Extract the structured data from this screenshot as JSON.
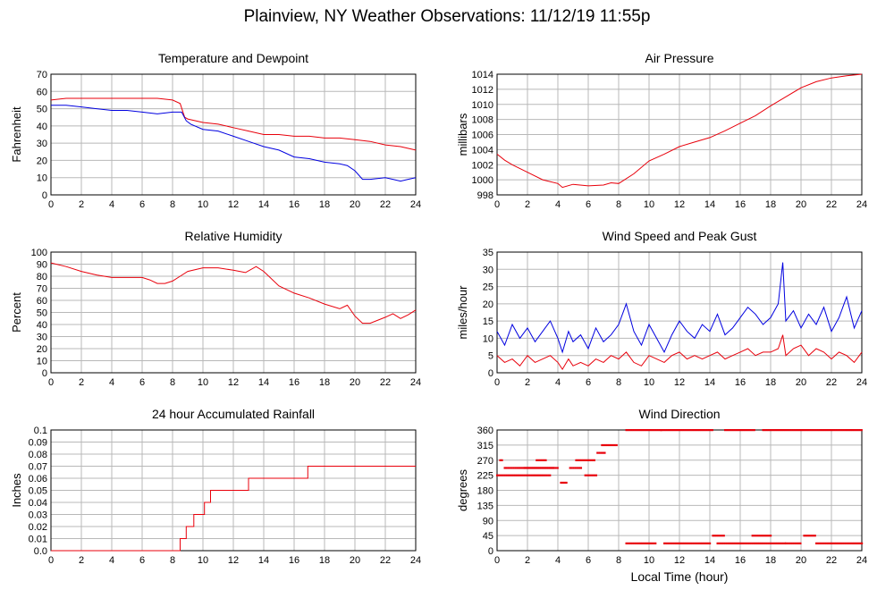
{
  "page": {
    "title": "Plainview, NY Weather Observations: 11/12/19 11:55p"
  },
  "colors": {
    "red": "#e8000b",
    "blue": "#0000e0",
    "grid": "#b8b8b8"
  },
  "chart_data": [
    {
      "id": "temp",
      "type": "line",
      "title": "Temperature and Dewpoint",
      "ylabel": "Fahrenheit",
      "xlabel": "",
      "xlim": [
        0,
        24
      ],
      "ylim": [
        0,
        70
      ],
      "xticks": [
        0,
        2,
        4,
        6,
        8,
        10,
        12,
        14,
        16,
        18,
        20,
        22,
        24
      ],
      "yticks": [
        0,
        10,
        20,
        30,
        40,
        50,
        60,
        70
      ],
      "series": [
        {
          "color": "red",
          "x": [
            0,
            1,
            2,
            3,
            4,
            5,
            6,
            7,
            8,
            8.5,
            8.8,
            9,
            10,
            11,
            12,
            13,
            14,
            15,
            16,
            17,
            18,
            19,
            20,
            21,
            22,
            23,
            24
          ],
          "y": [
            55,
            56,
            56,
            56,
            56,
            56,
            56,
            56,
            55,
            53,
            45,
            44,
            42,
            41,
            39,
            37,
            35,
            35,
            34,
            34,
            33,
            33,
            32,
            31,
            29,
            28,
            26
          ]
        },
        {
          "color": "blue",
          "x": [
            0,
            1,
            2,
            3,
            4,
            5,
            6,
            7,
            8,
            8.6,
            8.9,
            9.2,
            10,
            11,
            12,
            13,
            14,
            15,
            16,
            17,
            18,
            19,
            19.5,
            20,
            20.5,
            21,
            22,
            22.5,
            23,
            23.5,
            24
          ],
          "y": [
            52,
            52,
            51,
            50,
            49,
            49,
            48,
            47,
            48,
            48,
            43,
            41,
            38,
            37,
            34,
            31,
            28,
            26,
            22,
            21,
            19,
            18,
            17,
            14,
            9,
            9,
            10,
            9,
            8,
            9,
            10
          ]
        }
      ]
    },
    {
      "id": "pressure",
      "type": "line",
      "title": "Air Pressure",
      "ylabel": "millibars",
      "xlabel": "",
      "xlim": [
        0,
        24
      ],
      "ylim": [
        998,
        1014
      ],
      "xticks": [
        0,
        2,
        4,
        6,
        8,
        10,
        12,
        14,
        16,
        18,
        20,
        22,
        24
      ],
      "yticks": [
        998,
        1000,
        1002,
        1004,
        1006,
        1008,
        1010,
        1012,
        1014
      ],
      "series": [
        {
          "color": "red",
          "x": [
            0,
            0.5,
            1,
            2,
            3,
            4,
            4.3,
            5,
            6,
            7,
            7.5,
            8,
            9,
            10,
            11,
            12,
            13,
            14,
            15,
            16,
            17,
            18,
            19,
            20,
            21,
            22,
            23,
            24
          ],
          "y": [
            1003.4,
            1002.6,
            1002,
            1001,
            1000,
            999.5,
            999,
            999.4,
            999.2,
            999.3,
            999.6,
            999.5,
            1000.8,
            1002.5,
            1003.4,
            1004.4,
            1005,
            1005.6,
            1006.5,
            1007.5,
            1008.5,
            1009.8,
            1011,
            1012.2,
            1013,
            1013.5,
            1013.8,
            1014
          ]
        }
      ]
    },
    {
      "id": "humidity",
      "type": "line",
      "title": "Relative Humidity",
      "ylabel": "Percent",
      "xlabel": "",
      "xlim": [
        0,
        24
      ],
      "ylim": [
        0,
        100
      ],
      "xticks": [
        0,
        2,
        4,
        6,
        8,
        10,
        12,
        14,
        16,
        18,
        20,
        22,
        24
      ],
      "yticks": [
        0,
        10,
        20,
        30,
        40,
        50,
        60,
        70,
        80,
        90,
        100
      ],
      "series": [
        {
          "color": "red",
          "x": [
            0,
            1,
            2,
            3,
            4,
            5,
            6,
            6.5,
            7,
            7.5,
            8,
            8.5,
            9,
            10,
            11,
            12,
            12.8,
            13.5,
            14,
            15,
            16,
            17,
            18,
            19,
            19.5,
            20,
            20.5,
            21,
            22,
            22.5,
            23,
            23.5,
            24
          ],
          "y": [
            91,
            88,
            84,
            81,
            79,
            79,
            79,
            77,
            74,
            74,
            76,
            80,
            84,
            87,
            87,
            85,
            83,
            88,
            84,
            72,
            66,
            62,
            57,
            53,
            56,
            47,
            41,
            41,
            46,
            49,
            45,
            48,
            52
          ]
        }
      ]
    },
    {
      "id": "wind",
      "type": "line",
      "title": "Wind Speed and Peak Gust",
      "ylabel": "miles/hour",
      "xlabel": "",
      "xlim": [
        0,
        24
      ],
      "ylim": [
        0,
        35
      ],
      "xticks": [
        0,
        2,
        4,
        6,
        8,
        10,
        12,
        14,
        16,
        18,
        20,
        22,
        24
      ],
      "yticks": [
        0,
        5,
        10,
        15,
        20,
        25,
        30,
        35
      ],
      "series": [
        {
          "color": "blue",
          "x": [
            0,
            0.5,
            1,
            1.5,
            2,
            2.5,
            3,
            3.5,
            4,
            4.3,
            4.7,
            5,
            5.5,
            6,
            6.5,
            7,
            7.5,
            8,
            8.5,
            9,
            9.5,
            10,
            10.5,
            11,
            11.5,
            12,
            12.5,
            13,
            13.5,
            14,
            14.5,
            15,
            15.5,
            16,
            16.5,
            17,
            17.5,
            18,
            18.5,
            18.8,
            19,
            19.5,
            20,
            20.5,
            21,
            21.5,
            22,
            22.5,
            23,
            23.5,
            24
          ],
          "y": [
            12,
            8,
            14,
            10,
            13,
            9,
            12,
            15,
            10,
            6,
            12,
            9,
            11,
            7,
            13,
            9,
            11,
            14,
            20,
            12,
            8,
            14,
            10,
            6,
            11,
            15,
            12,
            10,
            14,
            12,
            17,
            11,
            13,
            16,
            19,
            17,
            14,
            16,
            20,
            32,
            15,
            18,
            13,
            17,
            14,
            19,
            12,
            16,
            22,
            13,
            18
          ]
        },
        {
          "color": "red",
          "x": [
            0,
            0.5,
            1,
            1.5,
            2,
            2.5,
            3,
            3.5,
            4,
            4.3,
            4.7,
            5,
            5.5,
            6,
            6.5,
            7,
            7.5,
            8,
            8.5,
            9,
            9.5,
            10,
            10.5,
            11,
            11.5,
            12,
            12.5,
            13,
            13.5,
            14,
            14.5,
            15,
            15.5,
            16,
            16.5,
            17,
            17.5,
            18,
            18.5,
            18.8,
            19,
            19.5,
            20,
            20.5,
            21,
            21.5,
            22,
            22.5,
            23,
            23.5,
            24
          ],
          "y": [
            5,
            3,
            4,
            2,
            5,
            3,
            4,
            5,
            3,
            1,
            4,
            2,
            3,
            2,
            4,
            3,
            5,
            4,
            6,
            3,
            2,
            5,
            4,
            3,
            5,
            6,
            4,
            5,
            4,
            5,
            6,
            4,
            5,
            6,
            7,
            5,
            6,
            6,
            7,
            11,
            5,
            7,
            8,
            5,
            7,
            6,
            4,
            6,
            5,
            3,
            6
          ]
        }
      ]
    },
    {
      "id": "rain",
      "type": "line",
      "title": "24 hour Accumulated Rainfall",
      "ylabel": "Inches",
      "xlabel": "",
      "xlim": [
        0,
        24
      ],
      "ylim": [
        0,
        0.1
      ],
      "xticks": [
        0,
        2,
        4,
        6,
        8,
        10,
        12,
        14,
        16,
        18,
        20,
        22,
        24
      ],
      "yticks": [
        0,
        0.01,
        0.02,
        0.03,
        0.04,
        0.05,
        0.06,
        0.07,
        0.08,
        0.09,
        0.1
      ],
      "yticklabels": [
        "0.0",
        "0.01",
        "0.02",
        "0.03",
        "0.04",
        "0.05",
        "0.06",
        "0.07",
        "0.08",
        "0.09",
        "0.1"
      ],
      "series": [
        {
          "color": "red",
          "step": true,
          "x": [
            0,
            8.5,
            8.9,
            9.4,
            9.7,
            10.1,
            10.5,
            13,
            16.9,
            24
          ],
          "y": [
            0,
            0.01,
            0.02,
            0.03,
            0.03,
            0.04,
            0.05,
            0.06,
            0.07,
            0.07
          ]
        }
      ]
    },
    {
      "id": "direction",
      "type": "scatter",
      "title": "Wind Direction",
      "ylabel": "degrees",
      "xlabel": "Local Time (hour)",
      "xlim": [
        0,
        24
      ],
      "ylim": [
        0,
        360
      ],
      "xticks": [
        0,
        2,
        4,
        6,
        8,
        10,
        12,
        14,
        16,
        18,
        20,
        22,
        24
      ],
      "yticks": [
        0,
        45,
        90,
        135,
        180,
        225,
        270,
        315,
        360
      ],
      "series": [
        {
          "color": "red",
          "segments": [
            [
              0,
              3.5,
              225
            ],
            [
              0.5,
              4,
              247
            ],
            [
              1.8,
              3.8,
              247
            ],
            [
              0.2,
              0.4,
              270
            ],
            [
              2.6,
              3.2,
              270
            ],
            [
              4.2,
              4.6,
              203
            ],
            [
              4.8,
              5.6,
              247
            ],
            [
              5.2,
              6.5,
              270
            ],
            [
              5.8,
              6.6,
              225
            ],
            [
              6.6,
              7.1,
              292
            ],
            [
              6.9,
              7.9,
              315
            ],
            [
              8.5,
              10.5,
              22
            ],
            [
              8.5,
              10.8,
              360
            ],
            [
              10.8,
              14.2,
              360
            ],
            [
              11,
              14,
              22
            ],
            [
              14.2,
              15,
              45
            ],
            [
              14.5,
              19,
              22
            ],
            [
              15,
              17,
              360
            ],
            [
              16.8,
              18,
              45
            ],
            [
              17.5,
              24,
              360
            ],
            [
              19,
              20,
              22
            ],
            [
              20.2,
              21,
              45
            ],
            [
              21,
              24,
              22
            ]
          ]
        }
      ]
    }
  ]
}
